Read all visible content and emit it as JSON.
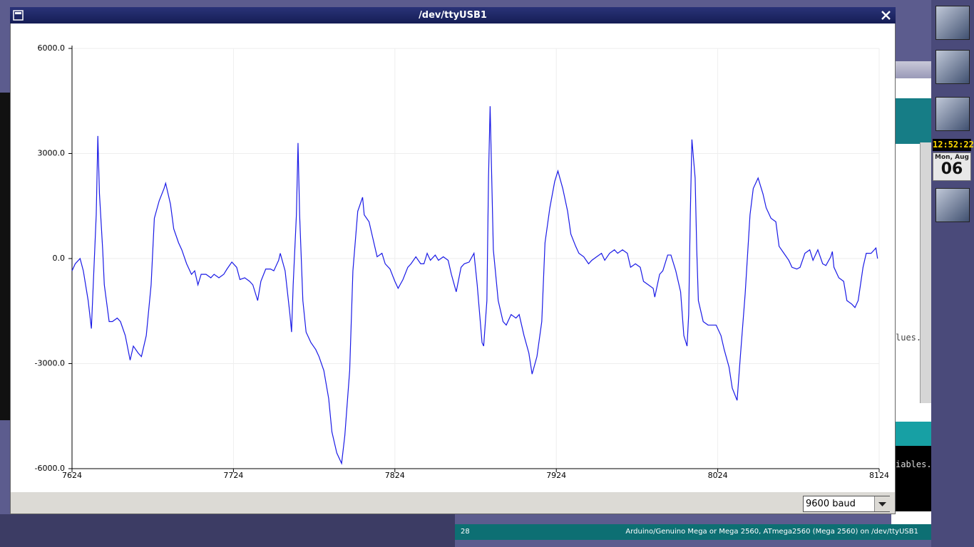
{
  "window": {
    "title": "/dev/ttyUSB1",
    "baud": "9600 baud"
  },
  "chart_data": {
    "type": "line",
    "color": "#1a1ae6",
    "x": [
      7624,
      7626,
      7629,
      7631,
      7634,
      7636,
      7639,
      7640,
      7641,
      7643,
      7644,
      7647,
      7649,
      7652,
      7654,
      7657,
      7660,
      7662,
      7665,
      7667,
      7670,
      7673,
      7675,
      7678,
      7681,
      7682,
      7685,
      7687,
      7690,
      7692,
      7695,
      7698,
      7700,
      7702,
      7704,
      7707,
      7710,
      7712,
      7715,
      7718,
      7720,
      7723,
      7726,
      7728,
      7731,
      7734,
      7736,
      7739,
      7741,
      7744,
      7747,
      7749,
      7752,
      7753,
      7756,
      7759,
      7760,
      7761,
      7763,
      7764,
      7765,
      7767,
      7769,
      7772,
      7775,
      7777,
      7780,
      7783,
      7785,
      7788,
      7791,
      7793,
      7796,
      7798,
      7801,
      7804,
      7805,
      7808,
      7810,
      7813,
      7816,
      7818,
      7821,
      7824,
      7826,
      7829,
      7832,
      7834,
      7837,
      7840,
      7842,
      7844,
      7846,
      7849,
      7851,
      7854,
      7857,
      7859,
      7862,
      7865,
      7867,
      7870,
      7873,
      7875,
      7878,
      7879,
      7881,
      7882,
      7883,
      7884,
      7885,
      7888,
      7891,
      7893,
      7896,
      7899,
      7901,
      7904,
      7907,
      7909,
      7912,
      7915,
      7917,
      7920,
      7923,
      7925,
      7928,
      7931,
      7933,
      7936,
      7938,
      7941,
      7944,
      7946,
      7949,
      7952,
      7954,
      7957,
      7960,
      7962,
      7965,
      7968,
      7970,
      7973,
      7976,
      7978,
      7981,
      7984,
      7985,
      7988,
      7990,
      7993,
      7995,
      7998,
      8001,
      8003,
      8005,
      8006,
      8007,
      8008,
      8010,
      8011,
      8012,
      8015,
      8018,
      8020,
      8023,
      8026,
      8028,
      8031,
      8033,
      8036,
      8038,
      8041,
      8044,
      8046,
      8049,
      8052,
      8054,
      8057,
      8060,
      8062,
      8065,
      8068,
      8070,
      8073,
      8075,
      8078,
      8081,
      8083,
      8086,
      8089,
      8091,
      8094,
      8095,
      8096,
      8099,
      8102,
      8104,
      8107,
      8109,
      8111,
      8114,
      8116,
      8119,
      8122,
      8123
    ],
    "values": [
      -350,
      -150,
      0,
      -350,
      -1200,
      -2000,
      1250,
      3500,
      1850,
      250,
      -750,
      -1800,
      -1800,
      -1700,
      -1800,
      -2200,
      -2900,
      -2500,
      -2700,
      -2800,
      -2200,
      -750,
      1150,
      1650,
      2000,
      2150,
      1550,
      850,
      450,
      250,
      -150,
      -450,
      -350,
      -750,
      -450,
      -450,
      -550,
      -450,
      -550,
      -450,
      -300,
      -100,
      -250,
      -600,
      -550,
      -650,
      -750,
      -1200,
      -650,
      -300,
      -300,
      -350,
      -50,
      150,
      -350,
      -1600,
      -2100,
      -750,
      1250,
      3300,
      1250,
      -1200,
      -2100,
      -2400,
      -2600,
      -2800,
      -3200,
      -4000,
      -4950,
      -5550,
      -5850,
      -5050,
      -3200,
      -350,
      1350,
      1750,
      1250,
      1050,
      650,
      50,
      150,
      -150,
      -300,
      -650,
      -850,
      -600,
      -250,
      -150,
      50,
      -150,
      -150,
      150,
      -50,
      100,
      -50,
      50,
      -50,
      -450,
      -950,
      -250,
      -150,
      -100,
      150,
      -750,
      -2400,
      -2500,
      -1200,
      2300,
      4350,
      2300,
      250,
      -1200,
      -1800,
      -1900,
      -1600,
      -1700,
      -1600,
      -2200,
      -2700,
      -3300,
      -2800,
      -1800,
      450,
      1450,
      2200,
      2500,
      2000,
      1350,
      700,
      350,
      150,
      50,
      -150,
      -50,
      50,
      150,
      -50,
      150,
      250,
      150,
      250,
      150,
      -250,
      -150,
      -250,
      -650,
      -750,
      -850,
      -1100,
      -450,
      -350,
      100,
      100,
      -350,
      -950,
      -2200,
      -2500,
      -1600,
      1250,
      3400,
      2300,
      250,
      -1200,
      -1800,
      -1900,
      -1900,
      -1900,
      -2200,
      -2600,
      -3100,
      -3700,
      -4050,
      -2800,
      -1000,
      1250,
      2000,
      2300,
      1850,
      1450,
      1150,
      1050,
      350,
      150,
      -50,
      -250,
      -300,
      -250,
      150,
      250,
      -50,
      250,
      -150,
      -200,
      50,
      200,
      -250,
      -550,
      -650,
      -1200,
      -1300,
      -1400,
      -1200,
      -250,
      150,
      150,
      300,
      0
    ],
    "xlim": [
      7624,
      8124
    ],
    "xticks": [
      7624,
      7724,
      7824,
      7924,
      8024,
      8124
    ],
    "ylim": [
      -6000,
      6000
    ],
    "yticks": [
      {
        "value": -6000,
        "label": "-6000.0"
      },
      {
        "value": -3000,
        "label": "-3000.0"
      },
      {
        "value": 0,
        "label": "0.0"
      },
      {
        "value": 3000,
        "label": "3000.0"
      },
      {
        "value": 6000,
        "label": "6000.0"
      }
    ],
    "grid": true
  },
  "status_bar": {
    "line": "28",
    "board": "Arduino/Genuino Mega or Mega 2560, ATmega2560 (Mega 2560) on /dev/ttyUSB1"
  },
  "clock": {
    "time": "12:52:22",
    "date": "Mon, Aug",
    "day": "06"
  },
  "background_text": [
    "lues.",
    "iables."
  ]
}
